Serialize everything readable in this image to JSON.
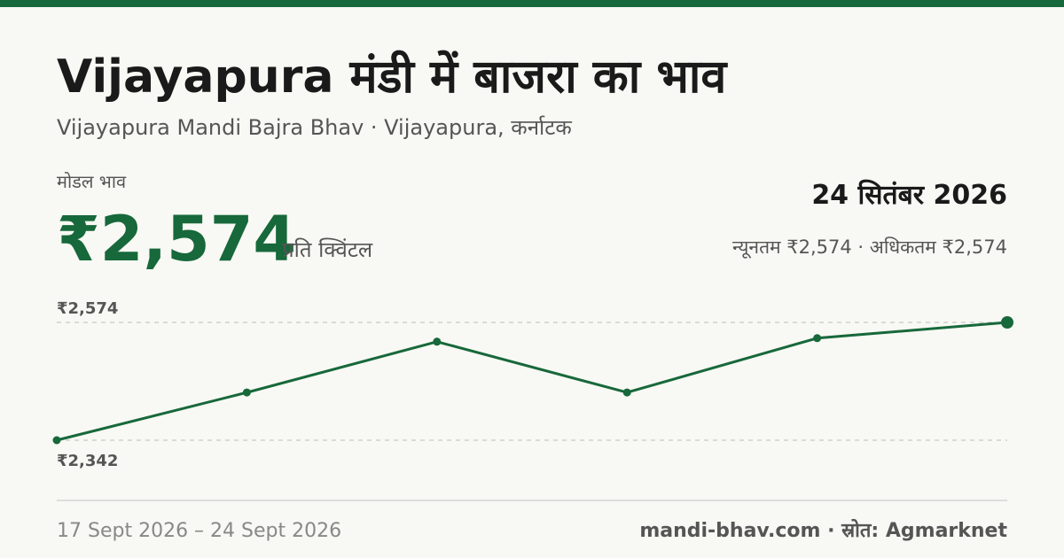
{
  "header": {
    "title": "Vijayapura मंडी में बाजरा का भाव",
    "subtitle": "Vijayapura Mandi Bajra Bhav · Vijayapura, कर्नाटक",
    "price_label": "मोडल भाव",
    "price": "₹2,574",
    "unit": "प्रति क्विंटल",
    "date": "24 सितंबर 2026",
    "range": "न्यूनतम ₹2,574 · अधिकतम ₹2,574"
  },
  "chart_data": {
    "type": "line",
    "values": [
      2342,
      2436,
      2536,
      2436,
      2543,
      2574
    ],
    "color": "#17683a",
    "ylim": [
      2342,
      2574
    ],
    "yticks": [
      {
        "value": 2574,
        "label": "₹2,574"
      },
      {
        "value": 2342,
        "label": "₹2,342"
      }
    ],
    "grid": true
  },
  "footer": {
    "period": "17 Sept 2026 – 24 Sept 2026",
    "source": "mandi-bhav.com · स्रोत: Agmarknet"
  }
}
